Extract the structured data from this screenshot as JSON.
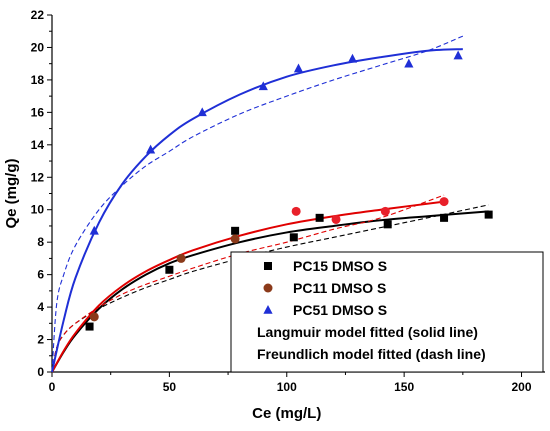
{
  "chart_data": {
    "type": "scatter",
    "xlabel": "Ce (mg/L)",
    "ylabel": "Qe (mg/g)",
    "xlim": [
      0,
      210
    ],
    "ylim": [
      0,
      22
    ],
    "x_ticks": [
      0,
      50,
      100,
      150,
      200
    ],
    "y_ticks": [
      0,
      2,
      4,
      6,
      8,
      10,
      12,
      14,
      16,
      18,
      20,
      22
    ],
    "grid": false,
    "legend_position": "lower-right",
    "legend_notes": [
      "Langmuir model fitted (solid line)",
      "Freundlich model fitted (dash line)"
    ],
    "series": [
      {
        "name": "PC15 DMSO S",
        "marker": "square",
        "color": "#000000",
        "points": [
          [
            16,
            2.8
          ],
          [
            50,
            6.3
          ],
          [
            78,
            8.7
          ],
          [
            103,
            8.3
          ],
          [
            114,
            9.5
          ],
          [
            143,
            9.1
          ],
          [
            167,
            9.5
          ],
          [
            186,
            9.7
          ]
        ],
        "fits": [
          {
            "model": "Langmuir",
            "style": "solid",
            "color": "#000000",
            "x": [
              0,
              5,
              10,
              20,
              30,
              40,
              50,
              60,
              80,
              100,
              120,
              140,
              160,
              186
            ],
            "y": [
              0,
              1.25,
              2.3,
              3.9,
              5.1,
              6.0,
              6.7,
              7.2,
              8.0,
              8.6,
              9.0,
              9.35,
              9.6,
              9.9
            ]
          },
          {
            "model": "Freundlich",
            "style": "dash",
            "color": "#000000",
            "x": [
              0,
              2,
              5,
              10,
              20,
              30,
              40,
              50,
              60,
              80,
              100,
              120,
              140,
              160,
              186
            ],
            "y": [
              0,
              1.5,
              2.3,
              3.0,
              3.9,
              4.6,
              5.2,
              5.7,
              6.2,
              7.0,
              7.7,
              8.3,
              8.9,
              9.5,
              10.3
            ]
          }
        ]
      },
      {
        "name": "PC11 DMSO S",
        "marker": "circle",
        "color": "#8b3a1a",
        "points": [
          [
            18,
            3.4
          ],
          [
            55,
            7.0
          ],
          [
            78,
            8.2
          ],
          [
            104,
            9.9
          ],
          [
            121,
            9.4
          ],
          [
            142,
            9.9
          ],
          [
            167,
            10.5
          ]
        ],
        "fits": [
          {
            "model": "Langmuir",
            "style": "solid",
            "color": "#e00000",
            "x": [
              0,
              5,
              10,
              20,
              30,
              40,
              50,
              60,
              80,
              100,
              120,
              140,
              167
            ],
            "y": [
              0,
              1.3,
              2.4,
              4.1,
              5.3,
              6.2,
              6.9,
              7.5,
              8.4,
              9.1,
              9.6,
              10.0,
              10.5
            ]
          },
          {
            "model": "Freundlich",
            "style": "dash",
            "color": "#e00000",
            "x": [
              0,
              2,
              5,
              10,
              20,
              30,
              40,
              50,
              60,
              80,
              100,
              120,
              140,
              167
            ],
            "y": [
              0,
              1.5,
              2.3,
              3.0,
              4.0,
              4.8,
              5.4,
              5.9,
              6.4,
              7.3,
              8.0,
              8.8,
              9.5,
              10.9
            ]
          }
        ]
      },
      {
        "name": "PC51 DMSO S",
        "marker": "triangle",
        "color": "#1f2fd6",
        "points": [
          [
            18,
            8.7
          ],
          [
            42,
            13.7
          ],
          [
            64,
            16.0
          ],
          [
            90,
            17.6
          ],
          [
            105,
            18.7
          ],
          [
            128,
            19.3
          ],
          [
            152,
            19.0
          ],
          [
            173,
            19.5
          ]
        ],
        "fits": [
          {
            "model": "Langmuir",
            "style": "solid",
            "color": "#1f2fd6",
            "x": [
              0,
              5,
              10,
              20,
              30,
              40,
              50,
              60,
              80,
              100,
              120,
              140,
              160,
              175
            ],
            "y": [
              0,
              3.2,
              5.8,
              9.2,
              11.6,
              13.3,
              14.6,
              15.6,
              17.1,
              18.2,
              18.9,
              19.4,
              19.8,
              19.9
            ]
          },
          {
            "model": "Freundlich",
            "style": "dash",
            "color": "#1f2fd6",
            "x": [
              0,
              2,
              5,
              10,
              20,
              30,
              40,
              50,
              60,
              80,
              100,
              120,
              140,
              160,
              175
            ],
            "y": [
              0,
              4.2,
              6.0,
              7.8,
              10.0,
              11.5,
              12.7,
              13.6,
              14.5,
              15.9,
              17.0,
              18.0,
              18.9,
              19.8,
              20.7
            ]
          }
        ]
      }
    ]
  }
}
